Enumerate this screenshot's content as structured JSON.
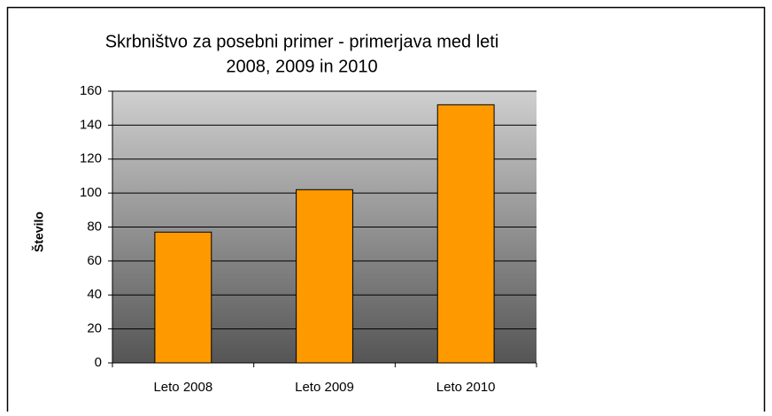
{
  "chart_data": {
    "type": "bar",
    "title": [
      "Skrbništvo za posebni primer - primerjava med leti",
      "2008, 2009 in 2010"
    ],
    "y_label": "Število",
    "categories": [
      "Leto 2008",
      "Leto 2009",
      "Leto 2010"
    ],
    "values": [
      77,
      102,
      152
    ],
    "color": "#ff9900",
    "ylim": [
      0,
      160
    ],
    "yticks": [
      0,
      20,
      40,
      60,
      80,
      100,
      120,
      140,
      160
    ],
    "grid": true
  }
}
